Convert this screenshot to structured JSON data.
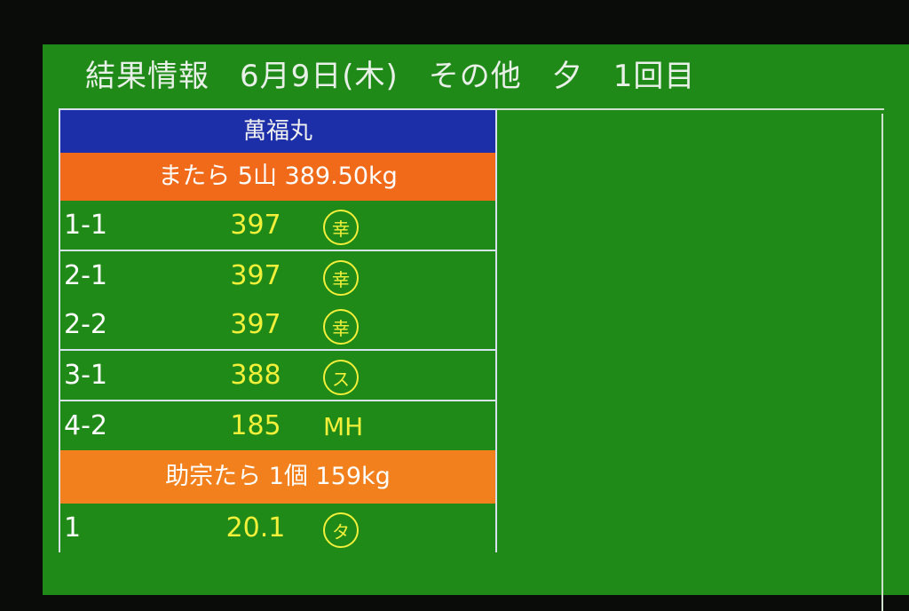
{
  "header": {
    "title": "結果情報",
    "date": "6月9日(木)",
    "category": "その他",
    "session": "夕",
    "round": "1回目"
  },
  "vessel": "萬福丸",
  "lots": [
    {
      "label": "またら 5山 389.50kg",
      "color": "#f06a1a",
      "groups": [
        [
          {
            "no": "1-1",
            "price": "397",
            "buyer": "幸",
            "buyer_style": "circled"
          }
        ],
        [
          {
            "no": "2-1",
            "price": "397",
            "buyer": "幸",
            "buyer_style": "circled"
          },
          {
            "no": "2-2",
            "price": "397",
            "buyer": "幸",
            "buyer_style": "circled"
          }
        ],
        [
          {
            "no": "3-1",
            "price": "388",
            "buyer": "ス",
            "buyer_style": "circled"
          }
        ],
        [
          {
            "no": "4-2",
            "price": "185",
            "buyer": "MH",
            "buyer_style": "plain"
          }
        ]
      ]
    },
    {
      "label": "助宗たら 1個 159kg",
      "color": "#f2801c",
      "groups": [
        [
          {
            "no": "1",
            "price": "20.1",
            "buyer": "タ",
            "buyer_style": "circled"
          }
        ]
      ]
    }
  ],
  "colors": {
    "background": "#1f8a18",
    "vessel_bar": "#1c2fa8",
    "price_text": "#f3f03a"
  }
}
